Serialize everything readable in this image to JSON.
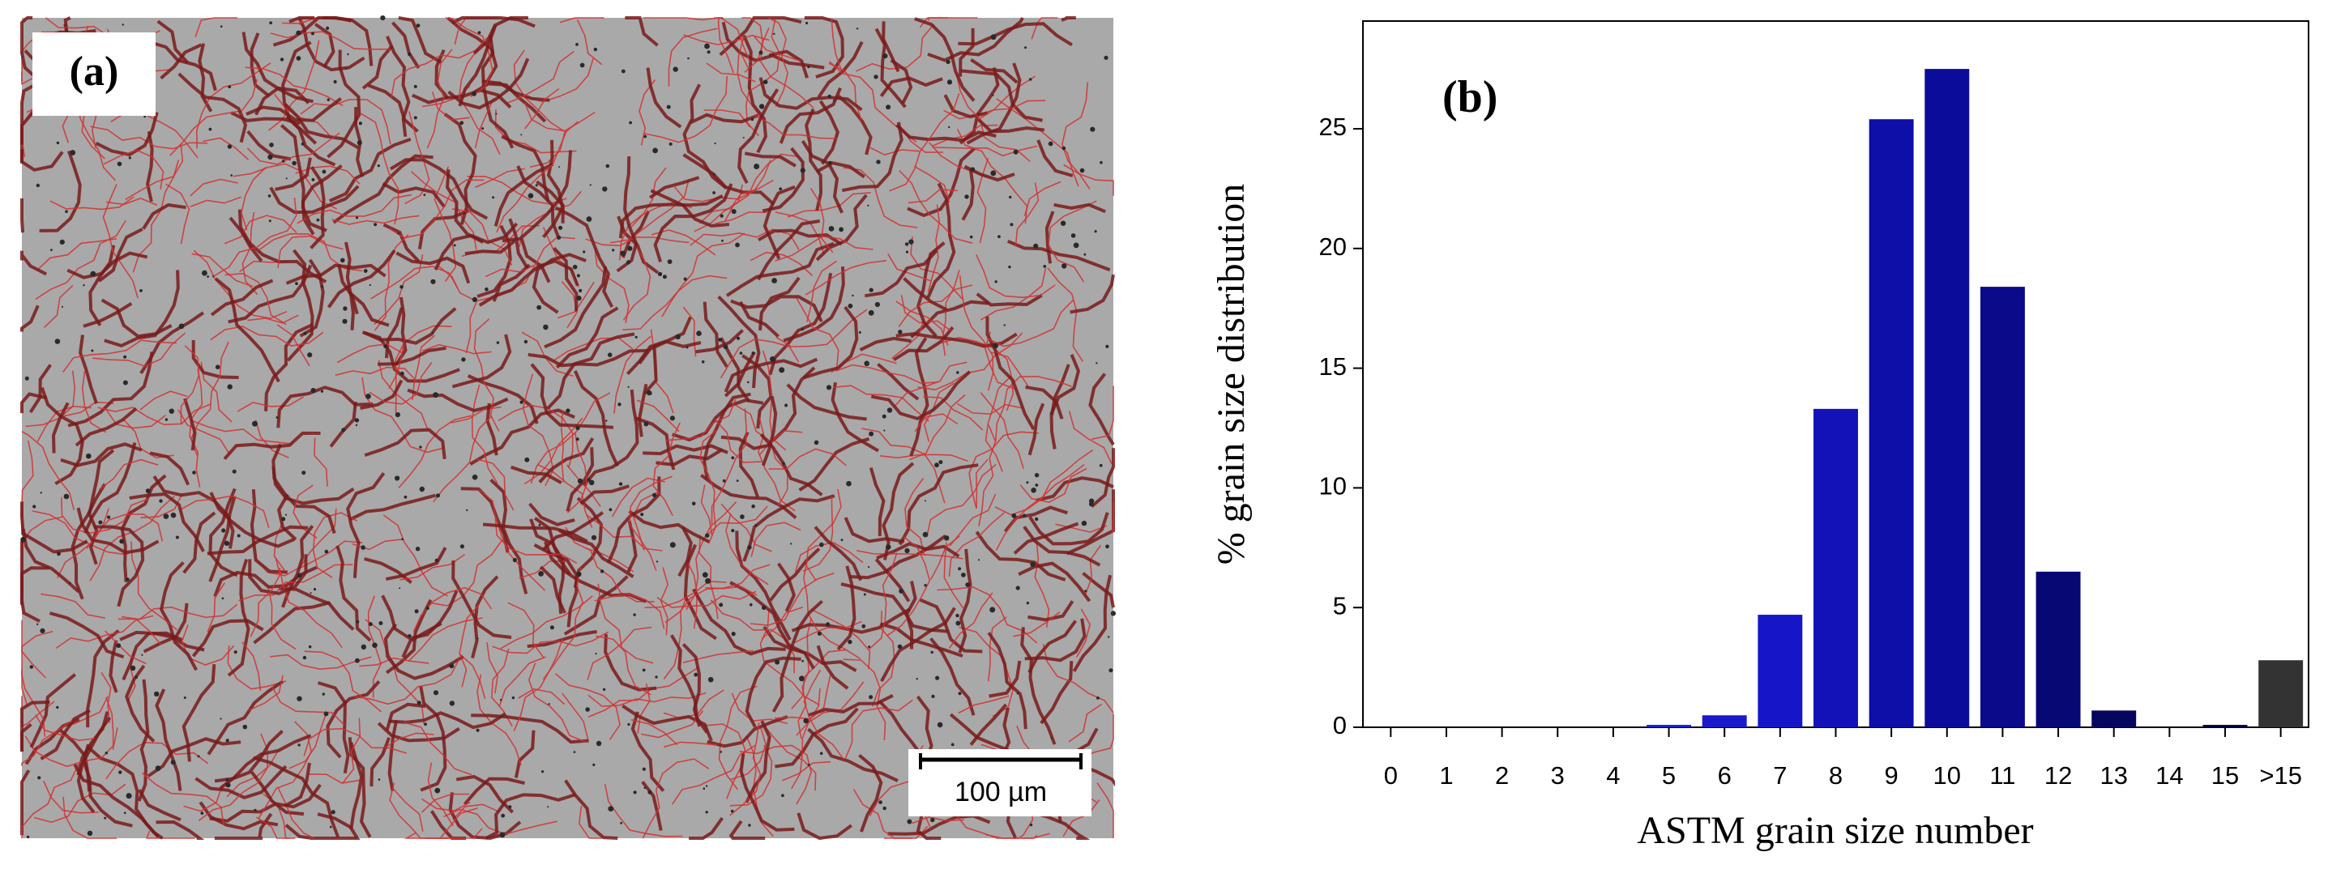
{
  "image_panel": {
    "label": "(a)",
    "scale_bar": "100 µm"
  },
  "chart_data": {
    "type": "bar",
    "annotation": "(b)",
    "x_label": "ASTM grain size number",
    "y_label": "% grain size distribution",
    "categories": [
      "0",
      "1",
      "2",
      "3",
      "4",
      "5",
      "6",
      "7",
      "8",
      "9",
      "10",
      "11",
      "12",
      "13",
      "14",
      "15",
      ">15"
    ],
    "values": [
      0,
      0,
      0,
      0,
      0,
      0.1,
      0.5,
      4.7,
      13.3,
      25.4,
      27.5,
      18.4,
      6.5,
      0.7,
      0,
      0.1,
      2.8
    ],
    "colors": [
      "#2020d8",
      "#2020d8",
      "#2020d8",
      "#2020d8",
      "#2020d8",
      "#1c1cd4",
      "#1a1acc",
      "#1616c8",
      "#1212b8",
      "#0e0ea8",
      "#0c0c9a",
      "#0a0a8a",
      "#080874",
      "#060660",
      "#05054e",
      "#04043e",
      "#333333"
    ],
    "ylim": [
      0,
      29.5
    ],
    "yticks": [
      0,
      5,
      10,
      15,
      20,
      25
    ]
  }
}
